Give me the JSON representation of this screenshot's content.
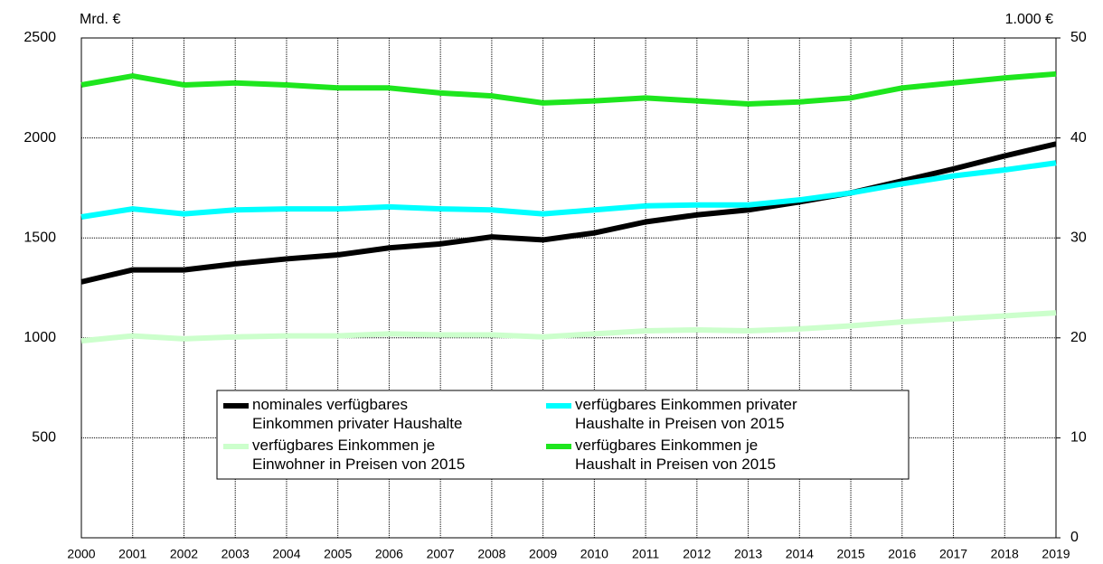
{
  "chart_data": {
    "type": "line",
    "y_label": "Mrd. €",
    "y2_label": "1.000 €",
    "categories": [
      "2000",
      "2001",
      "2002",
      "2003",
      "2004",
      "2005",
      "2006",
      "2007",
      "2008",
      "2009",
      "2010",
      "2011",
      "2012",
      "2013",
      "2014",
      "2015",
      "2016",
      "2017",
      "2018",
      "2019"
    ],
    "ylim": [
      0,
      2500
    ],
    "yticks": [
      500,
      1000,
      1500,
      2000,
      2500
    ],
    "y2lim": [
      0,
      50
    ],
    "y2ticks": [
      0,
      10,
      20,
      30,
      40,
      50
    ],
    "grid": true,
    "series": [
      {
        "name": "verfügbares Einkommen je Einwohner in Preisen von 2015",
        "color": "#ccffcc",
        "axis": "y2",
        "values": [
          19.7,
          20.2,
          19.9,
          20.1,
          20.2,
          20.2,
          20.4,
          20.3,
          20.3,
          20.1,
          20.4,
          20.7,
          20.8,
          20.7,
          20.9,
          21.2,
          21.6,
          21.9,
          22.2,
          22.5
        ]
      },
      {
        "name": "verfügbares Einkommen je Haushalt in Preisen von 2015",
        "color": "#1ee61e",
        "axis": "y2",
        "values": [
          45.3,
          46.2,
          45.3,
          45.5,
          45.3,
          45.0,
          45.0,
          44.5,
          44.2,
          43.5,
          43.7,
          44.0,
          43.7,
          43.4,
          43.6,
          44.0,
          45.0,
          45.5,
          46.0,
          46.4
        ]
      },
      {
        "name": "nominales verfügbares Einkommen privater Haushalte",
        "color": "#000000",
        "values": [
          1280,
          1340,
          1340,
          1370,
          1395,
          1415,
          1450,
          1470,
          1505,
          1490,
          1525,
          1580,
          1615,
          1640,
          1680,
          1725,
          1785,
          1845,
          1910,
          1970
        ]
      },
      {
        "name": "verfügbares Einkommen privater Haushalte in Preisen von 2015",
        "color": "#00ffff",
        "values": [
          1605,
          1645,
          1620,
          1640,
          1645,
          1645,
          1655,
          1645,
          1640,
          1620,
          1640,
          1660,
          1665,
          1665,
          1690,
          1725,
          1770,
          1810,
          1840,
          1875
        ]
      }
    ]
  }
}
